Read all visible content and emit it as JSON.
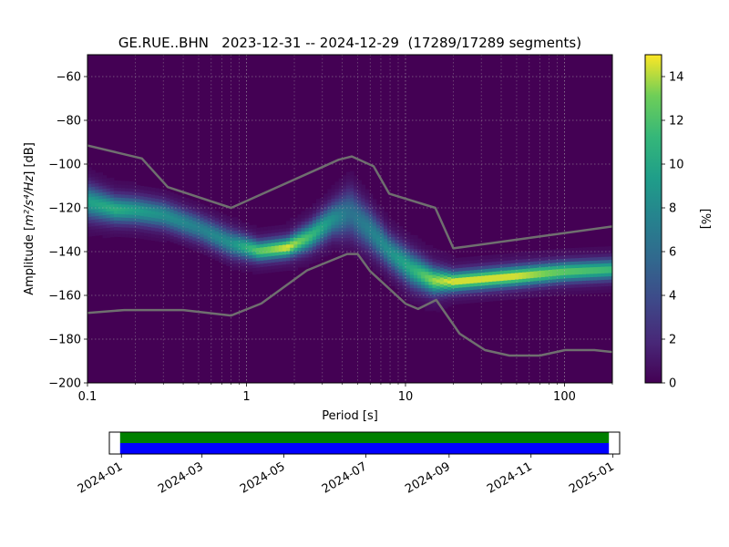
{
  "chart_data": [
    {
      "type": "heatmap",
      "title": "GE.RUE..BHN   2023-12-31 -- 2024-12-29  (17289/17289 segments)",
      "xlabel": "Period [s]",
      "ylabel_main": "Amplitude [",
      "ylabel_unit": "m²/s⁴/Hz",
      "ylabel_tail": "] [dB]",
      "x_scale": "log",
      "xlim": [
        0.1,
        200
      ],
      "ylim": [
        -200,
        -50
      ],
      "x_ticks": [
        {
          "value": 0.1,
          "label": "0.1"
        },
        {
          "value": 1,
          "label": "1"
        },
        {
          "value": 10,
          "label": "10"
        },
        {
          "value": 100,
          "label": "100"
        }
      ],
      "y_ticks": [
        {
          "value": -60,
          "label": "−60"
        },
        {
          "value": -80,
          "label": "−80"
        },
        {
          "value": -100,
          "label": "−100"
        },
        {
          "value": -120,
          "label": "−120"
        },
        {
          "value": -140,
          "label": "−140"
        },
        {
          "value": -160,
          "label": "−160"
        },
        {
          "value": -180,
          "label": "−180"
        },
        {
          "value": -200,
          "label": "−200"
        }
      ],
      "grid": true,
      "colormap": "viridis",
      "background_color": "#440154",
      "colorbar": {
        "label": "[%]",
        "range": [
          0,
          15
        ],
        "ticks": [
          {
            "value": 0,
            "label": "0"
          },
          {
            "value": 2,
            "label": "2"
          },
          {
            "value": 4,
            "label": "4"
          },
          {
            "value": 6,
            "label": "6"
          },
          {
            "value": 8,
            "label": "8"
          },
          {
            "value": 10,
            "label": "10"
          },
          {
            "value": 12,
            "label": "12"
          },
          {
            "value": 14,
            "label": "14"
          }
        ]
      },
      "psd_mode": {
        "periods": [
          0.1,
          0.15,
          0.2,
          0.3,
          0.5,
          0.8,
          1.2,
          1.8,
          2.5,
          3.5,
          4.5,
          6,
          8,
          11,
          15,
          20,
          50,
          100,
          200
        ],
        "dB": [
          -117,
          -120.5,
          -121,
          -123,
          -129,
          -136,
          -139.5,
          -138,
          -133,
          -125,
          -122,
          -130,
          -140,
          -148,
          -153,
          -153.5,
          -151,
          -149,
          -148
        ],
        "peak_percent": [
          9,
          10,
          9,
          8,
          7,
          8,
          12,
          14,
          11,
          8,
          6,
          7,
          8,
          10,
          13,
          14,
          14,
          12,
          11
        ],
        "width_dB": [
          5,
          4,
          4,
          4,
          4,
          4,
          3,
          3,
          4,
          5,
          7,
          6,
          5,
          5,
          4,
          3,
          3,
          3,
          3
        ]
      },
      "noise_model_high": {
        "name": "",
        "color": "#6f6f6f",
        "periods": [
          0.1,
          0.22,
          0.32,
          0.8,
          3.8,
          4.6,
          6.3,
          7.9,
          15.4,
          20,
          354.8
        ],
        "dB": [
          -91.5,
          -97.4,
          -110.5,
          -120,
          -98,
          -96.5,
          -101,
          -113.5,
          -120,
          -138.5,
          -126
        ]
      },
      "noise_model_low": {
        "name": "",
        "color": "#6f6f6f",
        "periods": [
          0.1,
          0.17,
          0.4,
          0.8,
          1.24,
          2.4,
          4.3,
          5,
          6,
          10,
          12,
          15.6,
          21.9,
          31.6,
          45,
          70,
          101,
          154,
          328
        ],
        "dB": [
          -168,
          -166.7,
          -166.7,
          -169.2,
          -163.7,
          -148.6,
          -141.1,
          -141.1,
          -149,
          -163.8,
          -166.2,
          -162.1,
          -177.5,
          -185,
          -187.5,
          -187.5,
          -185,
          -185,
          -187.5
        ]
      }
    },
    {
      "type": "timeline",
      "x_ticks": [
        "2024-01",
        "2024-03",
        "2024-05",
        "2024-07",
        "2024-09",
        "2024-11",
        "2025-01"
      ],
      "range_start": "2023-12-31",
      "range_end": "2024-12-29",
      "bands": [
        {
          "name": "",
          "color": "#008000",
          "start": "2023-12-31",
          "end": "2024-12-29"
        },
        {
          "name": "",
          "color": "#0000ff",
          "start": "2023-12-31",
          "end": "2024-12-29"
        }
      ]
    }
  ]
}
